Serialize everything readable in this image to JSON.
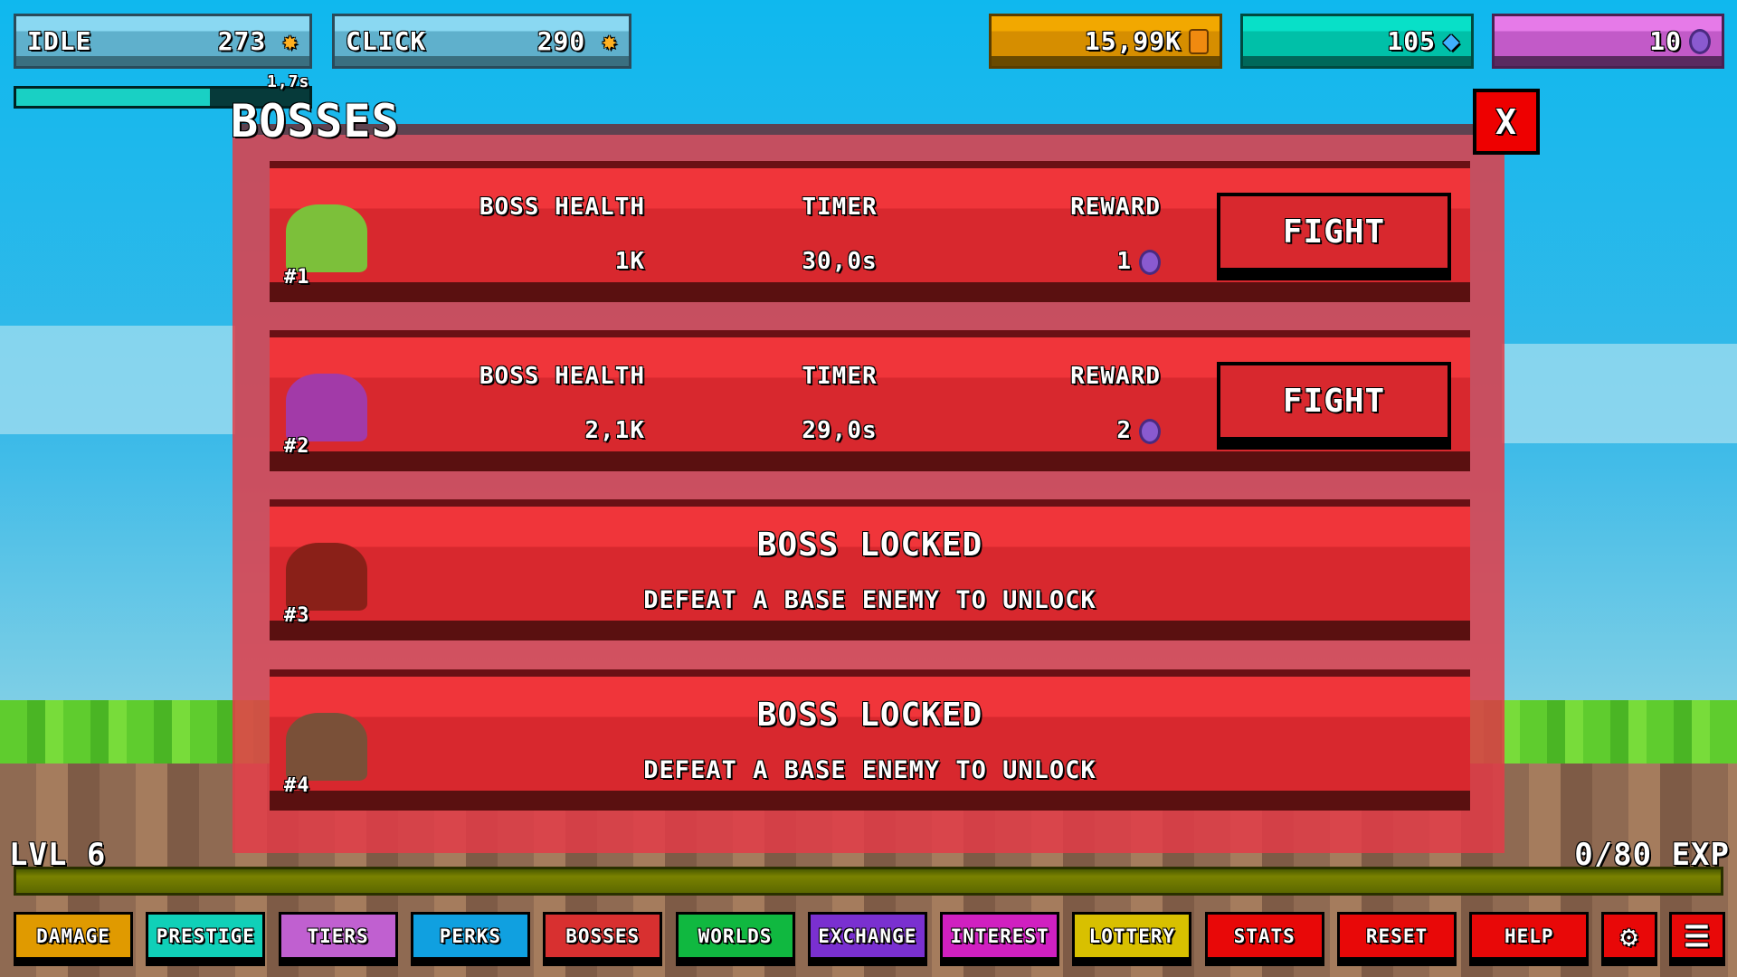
{
  "stats": {
    "idle_label": "IDLE",
    "idle_value": "273",
    "click_label": "CLICK",
    "click_value": "290"
  },
  "currencies": {
    "gold": "15,99K",
    "gems": "105",
    "orbs": "10"
  },
  "timer": {
    "label": "1,7s",
    "progress": 0.66
  },
  "panel": {
    "title": "BOSSES",
    "close": "X"
  },
  "bosses": [
    {
      "num": "#1",
      "health_label": "BOSS HEALTH",
      "timer_label": "TIMER",
      "reward_label": "REWARD",
      "health": "1K",
      "timer": "30,0s",
      "reward": "1",
      "fight": "FIGHT",
      "color": "#7cc03a"
    },
    {
      "num": "#2",
      "health_label": "BOSS HEALTH",
      "timer_label": "TIMER",
      "reward_label": "REWARD",
      "health": "2,1K",
      "timer": "29,0s",
      "reward": "2",
      "fight": "FIGHT",
      "color": "#a23aa8"
    },
    {
      "num": "#3",
      "locked": "BOSS LOCKED",
      "hint": "DEFEAT A BASE ENEMY TO UNLOCK",
      "color": "#8a2018"
    },
    {
      "num": "#4",
      "locked": "BOSS LOCKED",
      "hint": "DEFEAT A BASE ENEMY TO UNLOCK",
      "color": "#7a5038"
    }
  ],
  "level": {
    "label": "LVL 6",
    "exp": "0/80 EXP",
    "progress": 0
  },
  "nav": [
    {
      "label": "DAMAGE",
      "color": "#e09a00"
    },
    {
      "label": "PRESTIGE",
      "color": "#10d0b8"
    },
    {
      "label": "TIERS",
      "color": "#c060d0"
    },
    {
      "label": "PERKS",
      "color": "#10a0e0"
    },
    {
      "label": "BOSSES",
      "color": "#d83030"
    },
    {
      "label": "WORLDS",
      "color": "#10b840"
    },
    {
      "label": "EXCHANGE",
      "color": "#7a30d0"
    },
    {
      "label": "INTEREST",
      "color": "#d020c0"
    },
    {
      "label": "LOTTERY",
      "color": "#d8c000"
    },
    {
      "label": "STATS",
      "color": "#e80808"
    },
    {
      "label": "RESET",
      "color": "#e80808"
    },
    {
      "label": "HELP",
      "color": "#e80808"
    }
  ],
  "icons": {
    "settings": "gear-icon",
    "menu": "hamburger-menu-icon"
  }
}
